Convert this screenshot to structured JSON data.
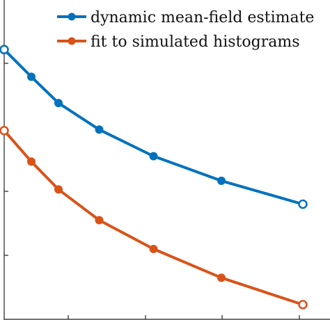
{
  "chart_data": {
    "type": "line",
    "title": "",
    "xlabel": "",
    "ylabel": "",
    "x": [
      0,
      1,
      2,
      3,
      4,
      5,
      6
    ],
    "xlim": [
      0,
      6
    ],
    "ylim": [
      0,
      10
    ],
    "grid": false,
    "legend_position": "top-right",
    "series": [
      {
        "name": "dynamic mean-field estimate",
        "color": "#0072BD",
        "x": [
          0,
          0.5,
          1.0,
          1.75,
          2.75,
          4.0,
          5.5
        ],
        "values": [
          8.45,
          7.6,
          6.78,
          5.95,
          5.12,
          4.35,
          3.62
        ]
      },
      {
        "name": "fit to simulated histograms",
        "color": "#D95319",
        "x": [
          0,
          0.5,
          1.0,
          1.75,
          2.75,
          4.0,
          5.5
        ],
        "values": [
          5.92,
          4.95,
          4.08,
          3.12,
          2.22,
          1.32,
          0.48
        ]
      }
    ]
  }
}
